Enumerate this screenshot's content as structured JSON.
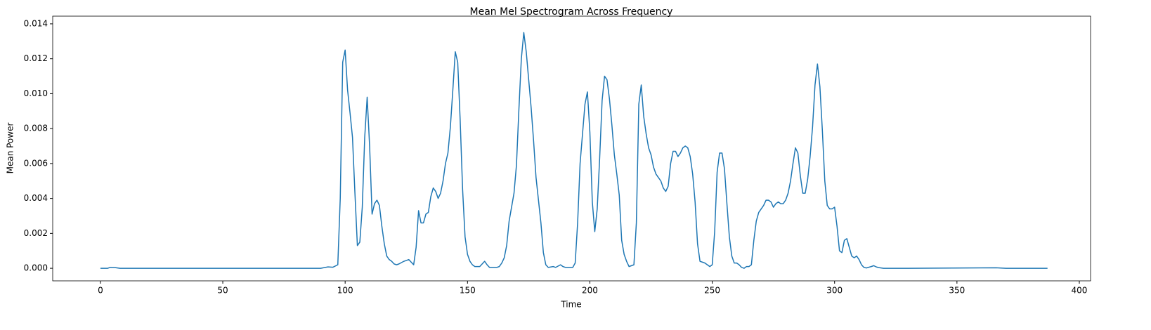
{
  "chart_data": {
    "type": "line",
    "title": "Mean Mel Spectrogram Across Frequency",
    "x_label": "Time",
    "y_label": "Mean Power",
    "x": [
      0,
      3,
      4,
      6,
      8,
      90,
      93,
      95,
      97,
      98,
      99,
      100,
      101,
      102,
      103,
      104,
      105,
      106,
      107,
      108,
      109,
      110,
      111,
      112,
      113,
      114,
      115,
      116,
      117,
      118,
      119,
      120,
      121,
      122,
      124,
      126,
      128,
      129,
      130,
      131,
      132,
      133,
      134,
      135,
      136,
      137,
      138,
      139,
      140,
      141,
      142,
      143,
      144,
      145,
      146,
      147,
      148,
      149,
      150,
      151,
      152,
      153,
      155,
      157,
      158,
      159,
      162,
      163,
      164,
      165,
      166,
      167,
      168,
      169,
      170,
      171,
      172,
      173,
      174,
      175,
      176,
      177,
      178,
      179,
      180,
      181,
      182,
      183,
      185,
      186,
      188,
      189,
      190,
      193,
      194,
      195,
      196,
      197,
      198,
      199,
      200,
      201,
      202,
      203,
      204,
      205,
      206,
      207,
      208,
      209,
      210,
      211,
      212,
      213,
      214,
      215,
      216,
      218,
      219,
      220,
      221,
      222,
      223,
      224,
      225,
      226,
      227,
      228,
      229,
      230,
      231,
      232,
      233,
      234,
      235,
      236,
      237,
      238,
      239,
      240,
      241,
      242,
      243,
      244,
      245,
      246,
      247,
      248,
      249,
      250,
      251,
      252,
      253,
      254,
      255,
      256,
      257,
      258,
      259,
      260,
      261,
      262,
      263,
      264,
      265,
      266,
      267,
      268,
      269,
      270,
      271,
      272,
      273,
      274,
      275,
      276,
      277,
      278,
      279,
      280,
      281,
      282,
      283,
      284,
      285,
      286,
      287,
      288,
      289,
      290,
      291,
      292,
      293,
      294,
      295,
      296,
      297,
      298,
      299,
      300,
      301,
      302,
      303,
      304,
      305,
      306,
      307,
      308,
      309,
      310,
      311,
      312,
      313,
      315,
      316,
      317,
      318,
      320,
      330,
      366,
      370,
      387
    ],
    "series": [
      {
        "name": "Mean Power",
        "color": "#1f77b4",
        "values": [
          0,
          0,
          5e-05,
          4e-05,
          0,
          0,
          8e-05,
          6e-05,
          0.0002,
          0.004,
          0.0118,
          0.0125,
          0.0102,
          0.0089,
          0.0075,
          0.0043,
          0.0013,
          0.0015,
          0.0035,
          0.0075,
          0.0098,
          0.007,
          0.0031,
          0.0037,
          0.0039,
          0.0036,
          0.0024,
          0.0014,
          0.0007,
          0.0005,
          0.0004,
          0.00025,
          0.0002,
          0.00025,
          0.0004,
          0.0005,
          0.0002,
          0.0012,
          0.0033,
          0.0026,
          0.0026,
          0.0031,
          0.0032,
          0.0041,
          0.0046,
          0.0044,
          0.004,
          0.0043,
          0.005,
          0.006,
          0.0066,
          0.0081,
          0.0102,
          0.0124,
          0.0118,
          0.0085,
          0.0045,
          0.0018,
          0.0008,
          0.0004,
          0.0002,
          0.0001,
          0.0001,
          0.0004,
          0.0002,
          5e-05,
          5e-05,
          0.0001,
          0.0003,
          0.0006,
          0.0013,
          0.0027,
          0.0035,
          0.0043,
          0.0059,
          0.0091,
          0.012,
          0.0135,
          0.0124,
          0.0108,
          0.0092,
          0.0073,
          0.0052,
          0.0039,
          0.0026,
          0.0009,
          0.0002,
          5e-05,
          0.0001,
          5e-05,
          0.0002,
          0.0001,
          5e-05,
          5e-05,
          0.0003,
          0.0026,
          0.006,
          0.0077,
          0.0094,
          0.0101,
          0.0078,
          0.0038,
          0.0021,
          0.0034,
          0.0063,
          0.0096,
          0.011,
          0.0108,
          0.0097,
          0.0082,
          0.0065,
          0.0054,
          0.0042,
          0.0016,
          0.0008,
          0.0004,
          0.0001,
          0.0002,
          0.0026,
          0.0094,
          0.0105,
          0.0087,
          0.0077,
          0.0069,
          0.0065,
          0.0058,
          0.0054,
          0.0052,
          0.005,
          0.0046,
          0.0044,
          0.0047,
          0.006,
          0.0067,
          0.0067,
          0.0064,
          0.0066,
          0.0069,
          0.007,
          0.0069,
          0.0064,
          0.0054,
          0.0038,
          0.0014,
          0.0004,
          0.00035,
          0.0003,
          0.0002,
          0.0001,
          0.0002,
          0.0021,
          0.0055,
          0.0066,
          0.0066,
          0.0057,
          0.0037,
          0.0018,
          0.0007,
          0.0003,
          0.0003,
          0.0002,
          5e-05,
          0,
          0.0001,
          0.0001,
          0.0002,
          0.0016,
          0.0027,
          0.0032,
          0.0034,
          0.0036,
          0.0039,
          0.0039,
          0.0038,
          0.0035,
          0.0037,
          0.0038,
          0.0037,
          0.0037,
          0.0039,
          0.0043,
          0.005,
          0.006,
          0.0069,
          0.0066,
          0.0053,
          0.0043,
          0.0043,
          0.0051,
          0.0064,
          0.0081,
          0.0105,
          0.0117,
          0.0104,
          0.0079,
          0.005,
          0.0036,
          0.0034,
          0.0034,
          0.0035,
          0.0024,
          0.001,
          0.0009,
          0.0016,
          0.0017,
          0.0012,
          0.0007,
          0.0006,
          0.0007,
          0.0005,
          0.0002,
          5e-05,
          2e-05,
          0.0001,
          0.00015,
          8e-05,
          4e-05,
          0,
          0,
          3e-05,
          0,
          0
        ]
      }
    ],
    "xlim": [
      -19.5,
      404.6
    ],
    "ylim": [
      -0.00072,
      0.01444
    ],
    "xticks": [
      0,
      50,
      100,
      150,
      200,
      250,
      300,
      350,
      400
    ],
    "yticks": [
      {
        "value": 0,
        "label": "0.000"
      },
      {
        "value": 0.002,
        "label": "0.002"
      },
      {
        "value": 0.004,
        "label": "0.004"
      },
      {
        "value": 0.006,
        "label": "0.006"
      },
      {
        "value": 0.008,
        "label": "0.008"
      },
      {
        "value": 0.01,
        "label": "0.010"
      },
      {
        "value": 0.012,
        "label": "0.012"
      },
      {
        "value": 0.014,
        "label": "0.014"
      }
    ]
  }
}
